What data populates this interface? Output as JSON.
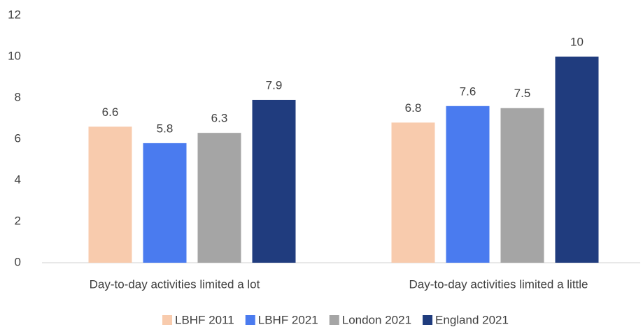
{
  "chart_data": {
    "type": "bar",
    "categories": [
      "Day-to-day activities limited a lot",
      "Day-to-day activities limited a little"
    ],
    "series": [
      {
        "name": "LBHF 2011",
        "color": "#f8cbad",
        "values": [
          6.6,
          6.8
        ]
      },
      {
        "name": "LBHF 2021",
        "color": "#4a7bef",
        "values": [
          5.8,
          7.6
        ]
      },
      {
        "name": "London 2021",
        "color": "#a5a5a5",
        "values": [
          6.3,
          7.5
        ]
      },
      {
        "name": "England 2021",
        "color": "#203c7e",
        "values": [
          7.9,
          10
        ]
      }
    ],
    "ylim": [
      0,
      12
    ],
    "yticks": [
      0,
      2,
      4,
      6,
      8,
      10,
      12
    ],
    "grid": false,
    "legend": "bottom"
  }
}
